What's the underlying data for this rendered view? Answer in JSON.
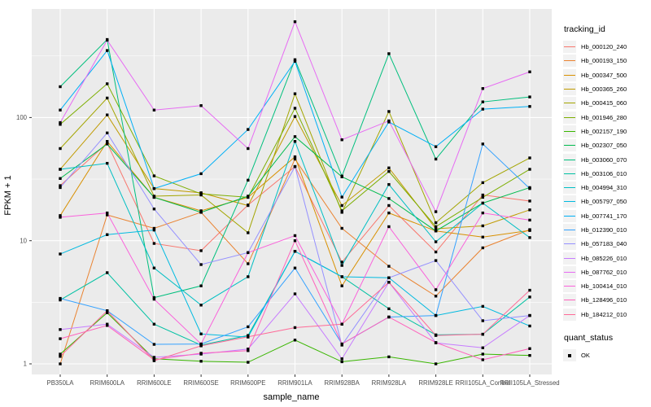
{
  "chart_data": {
    "type": "line",
    "x": {
      "label": "sample_name",
      "categories": [
        "PB350LA",
        "RRIM600LA",
        "RRIM600LE",
        "RRIM600SE",
        "RRIM600PE",
        "RRIM901LA",
        "RRIM928BA",
        "RRIM928LA",
        "RRIM928LE",
        "RRII105LA_Control",
        "RRII105LA_Stressed"
      ]
    },
    "y": {
      "label": "FPKM + 1",
      "scale": "log10",
      "ticks": [
        1,
        10,
        100
      ],
      "range_hint": [
        1,
        700
      ]
    },
    "legend": {
      "title": "tracking_id",
      "position": "right"
    },
    "quant_legend": {
      "title": "quant_status",
      "items": [
        "OK"
      ],
      "marker": "black-square"
    },
    "style": {
      "panel_bg": "#EBEBEB",
      "grid_color": "#FFFFFF",
      "marker_color": "#000000",
      "tick_text_color": "#4D4D4D",
      "axis_title_color": "#000000"
    },
    "series": [
      {
        "name": "Hb_000120_240",
        "color": "#F8766D",
        "values": [
          28,
          62,
          9.5,
          8.3,
          19.5,
          40,
          6.7,
          19.3,
          8.1,
          23.5,
          21
        ]
      },
      {
        "name": "Hb_000193_150",
        "color": "#EA8331",
        "values": [
          1.0,
          16.2,
          12.6,
          17,
          6.5,
          46,
          12.6,
          6.2,
          3.55,
          8.75,
          12.3
        ]
      },
      {
        "name": "Hb_000347_500",
        "color": "#D89000",
        "values": [
          16,
          64,
          22.5,
          17.5,
          22.5,
          48,
          4.3,
          16.8,
          12,
          10.7,
          12.1
        ]
      },
      {
        "name": "Hb_000365_260",
        "color": "#C09B00",
        "values": [
          38,
          105,
          26.5,
          24.5,
          19.3,
          102,
          19.3,
          39,
          12.5,
          13.2,
          17.8
        ]
      },
      {
        "name": "Hb_000415_060",
        "color": "#A3A500",
        "values": [
          56,
          144,
          23,
          23.5,
          11.6,
          156,
          17,
          112,
          14,
          29.6,
          47
        ]
      },
      {
        "name": "Hb_001946_280",
        "color": "#7CAE00",
        "values": [
          88,
          188,
          33.6,
          24,
          22.5,
          119,
          17.5,
          36.5,
          13,
          22.5,
          38
        ]
      },
      {
        "name": "Hb_002157_190",
        "color": "#39B600",
        "values": [
          1.2,
          2.6,
          1.1,
          1.05,
          1.03,
          1.56,
          1.04,
          1.14,
          1.0,
          1.2,
          1.17
        ]
      },
      {
        "name": "Hb_002307_050",
        "color": "#00BB4E",
        "values": [
          32,
          61,
          22.5,
          17,
          23,
          70,
          33,
          22,
          12,
          20.2,
          27
        ]
      },
      {
        "name": "Hb_003060_070",
        "color": "#00BF7D",
        "values": [
          178,
          430,
          3.45,
          4.3,
          31,
          295,
          33.5,
          330,
          46,
          134,
          147
        ]
      },
      {
        "name": "Hb_003106_010",
        "color": "#00C1A3",
        "values": [
          3.3,
          5.5,
          2.1,
          1.42,
          1.7,
          8.2,
          5.1,
          2.8,
          1.72,
          1.74,
          3.49
        ]
      },
      {
        "name": "Hb_004994_310",
        "color": "#00BFC4",
        "values": [
          38,
          42.5,
          6.0,
          3.0,
          5.1,
          64,
          6.3,
          28.6,
          9.8,
          20.2,
          10.6
        ]
      },
      {
        "name": "Hb_005797_050",
        "color": "#00BAE0",
        "values": [
          7.8,
          11.2,
          12.2,
          1.75,
          1.65,
          8.2,
          5.1,
          5.0,
          2.47,
          2.93,
          2.03
        ]
      },
      {
        "name": "Hb_007741_170",
        "color": "#00B0F6",
        "values": [
          115,
          350,
          26.5,
          35,
          80,
          286,
          22.6,
          92,
          58,
          117,
          123
        ]
      },
      {
        "name": "Hb_012390_010",
        "color": "#35A2FF",
        "values": [
          3.4,
          2.7,
          1.44,
          1.45,
          2.0,
          6.0,
          1.45,
          2.4,
          2.47,
          61,
          26.5
        ]
      },
      {
        "name": "Hb_057183_040",
        "color": "#9590FF",
        "values": [
          27,
          75,
          18.1,
          6.4,
          8.0,
          40,
          1.42,
          5.0,
          6.9,
          2.24,
          2.47
        ]
      },
      {
        "name": "Hb_085226_010",
        "color": "#C77CFF",
        "values": [
          1.9,
          2.1,
          1.13,
          1.2,
          1.32,
          3.7,
          1.1,
          4.6,
          1.48,
          1.35,
          2.47
        ]
      },
      {
        "name": "Hb_087762_010",
        "color": "#E76BF3",
        "values": [
          91,
          425,
          115,
          125,
          56,
          600,
          66,
          94,
          17.2,
          172,
          235
        ]
      },
      {
        "name": "Hb_100414_010",
        "color": "#FA62DB",
        "values": [
          15.5,
          16.8,
          3.35,
          1.45,
          8.0,
          11,
          2.1,
          13,
          4.0,
          16.8,
          14.7
        ]
      },
      {
        "name": "Hb_128496_010",
        "color": "#FF62BC",
        "values": [
          1.6,
          2.05,
          1.08,
          1.22,
          1.28,
          10,
          1.45,
          2.4,
          1.49,
          1.08,
          1.33
        ]
      },
      {
        "name": "Hb_184212_010",
        "color": "#FF6A98",
        "values": [
          1.15,
          2.7,
          1.06,
          1.4,
          1.66,
          1.97,
          2.1,
          4.6,
          1.7,
          1.74,
          3.96
        ]
      }
    ]
  }
}
